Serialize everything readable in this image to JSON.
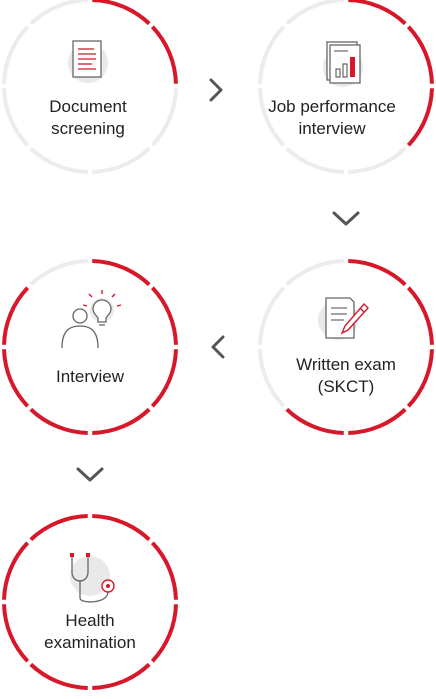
{
  "colors": {
    "accent": "#d7182a",
    "ring": "#ececec",
    "arrow": "#555555",
    "icon_stroke": "#666666",
    "icon_bg": "#e9e9e9",
    "text": "#222222"
  },
  "steps": [
    {
      "id": "document-screening",
      "lines": [
        "Document",
        "screening"
      ],
      "icon": "document-icon",
      "progress_fraction": 0.25
    },
    {
      "id": "job-performance-interview",
      "lines": [
        "Job performance",
        "interview"
      ],
      "icon": "report-chart-icon",
      "progress_fraction": 0.375
    },
    {
      "id": "written-exam",
      "lines": [
        "Written exam",
        "(SKCT)"
      ],
      "icon": "exam-pencil-icon",
      "progress_fraction": 0.625
    },
    {
      "id": "interview",
      "lines": [
        "Interview"
      ],
      "icon": "person-lightbulb-icon",
      "progress_fraction": 0.875
    },
    {
      "id": "health-examination",
      "lines": [
        "Health",
        "examination"
      ],
      "icon": "stethoscope-icon",
      "progress_fraction": 1.0
    }
  ],
  "connectors": [
    {
      "from": "document-screening",
      "to": "job-performance-interview",
      "icon": "chevron-right-icon"
    },
    {
      "from": "job-performance-interview",
      "to": "written-exam",
      "icon": "chevron-down-icon"
    },
    {
      "from": "written-exam",
      "to": "interview",
      "icon": "chevron-left-icon"
    },
    {
      "from": "interview",
      "to": "health-examination",
      "icon": "chevron-down-icon"
    }
  ]
}
